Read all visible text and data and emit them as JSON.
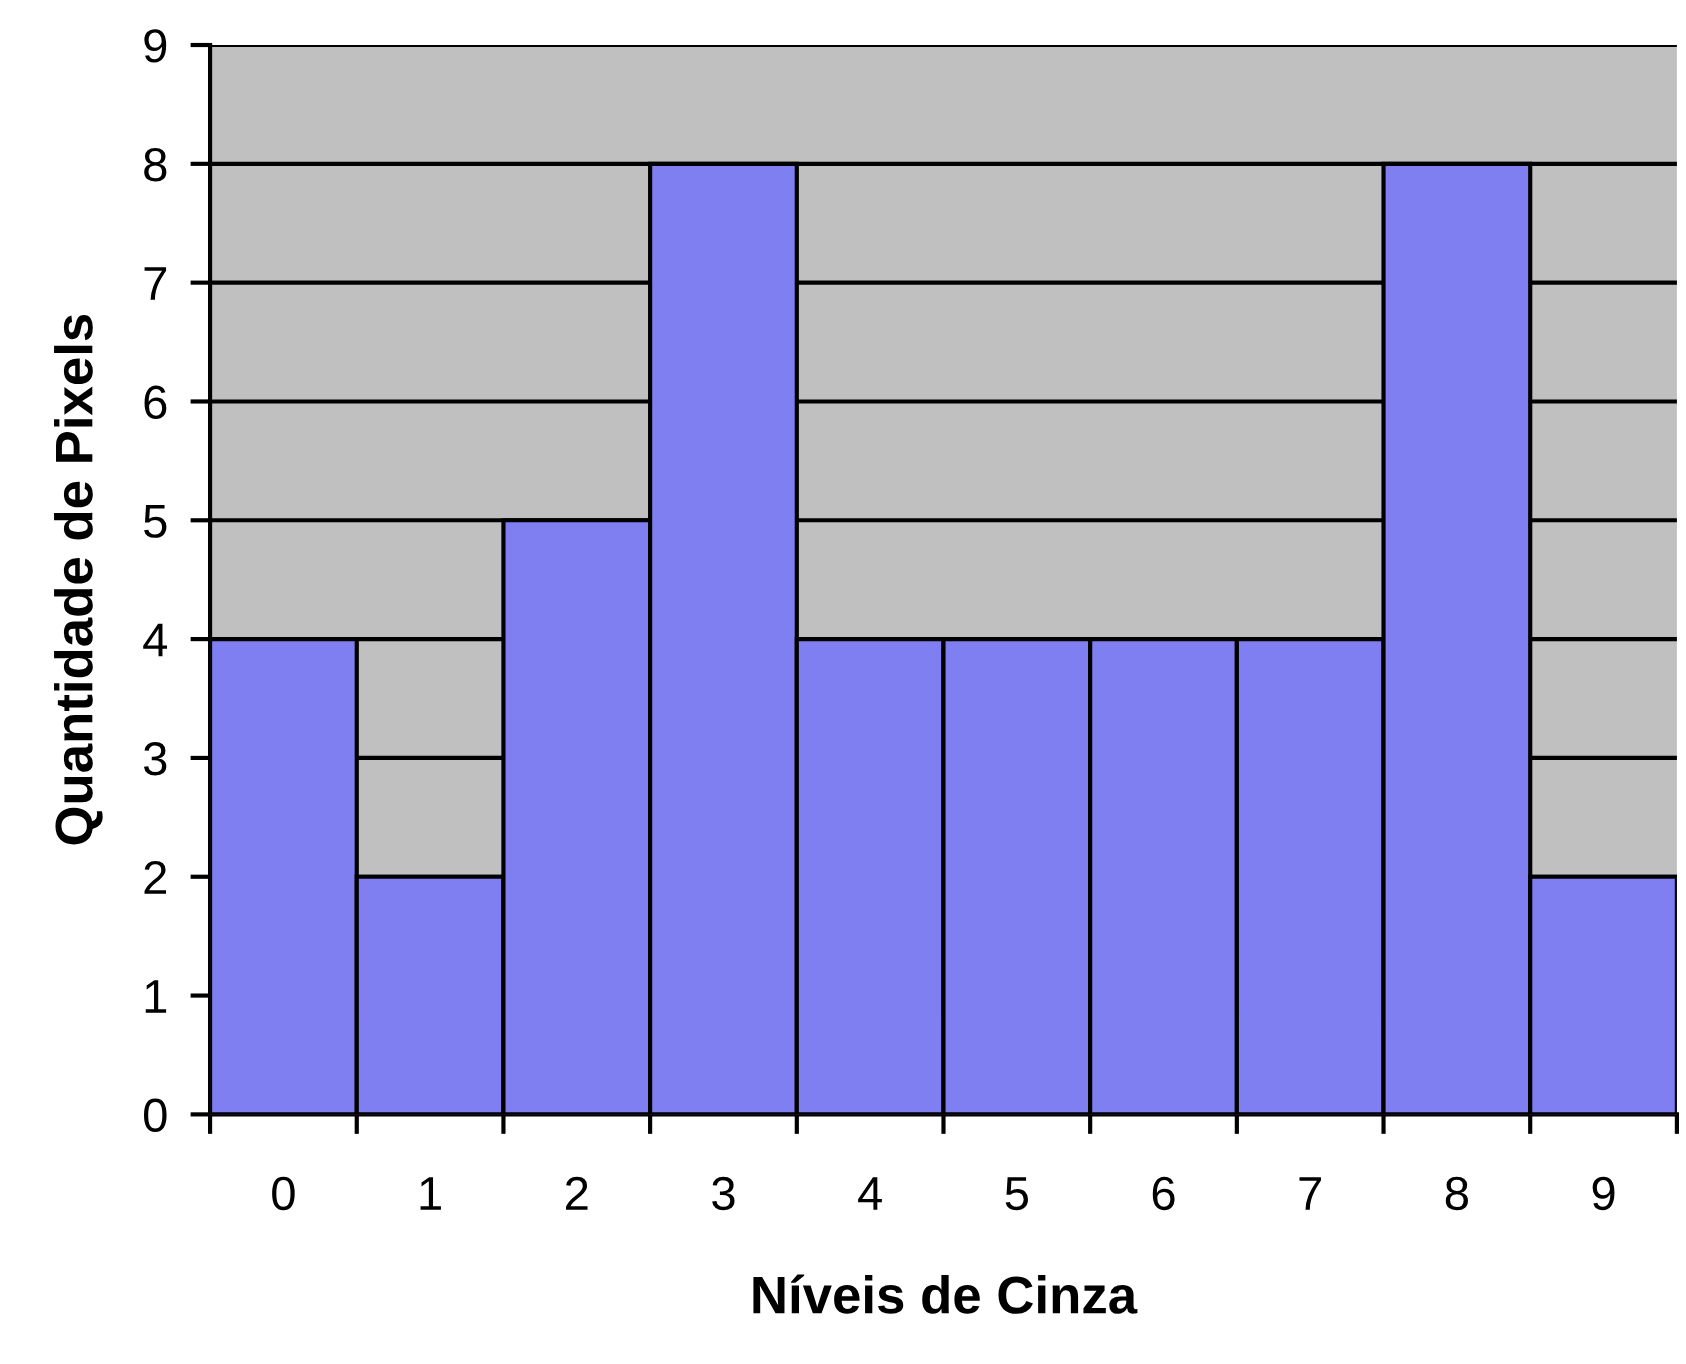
{
  "chart_data": {
    "type": "bar",
    "xlabel": "Níveis de Cinza",
    "ylabel": "Quantidade de Pixels",
    "categories": [
      "0",
      "1",
      "2",
      "3",
      "4",
      "5",
      "6",
      "7",
      "8",
      "9"
    ],
    "values": [
      4,
      2,
      5,
      8,
      4,
      4,
      4,
      4,
      8,
      2
    ],
    "color": "#7f7ff2",
    "ylim": [
      0,
      9
    ],
    "yticks": [
      0,
      1,
      2,
      3,
      4,
      5,
      6,
      7,
      8,
      9
    ],
    "grid": "y"
  }
}
